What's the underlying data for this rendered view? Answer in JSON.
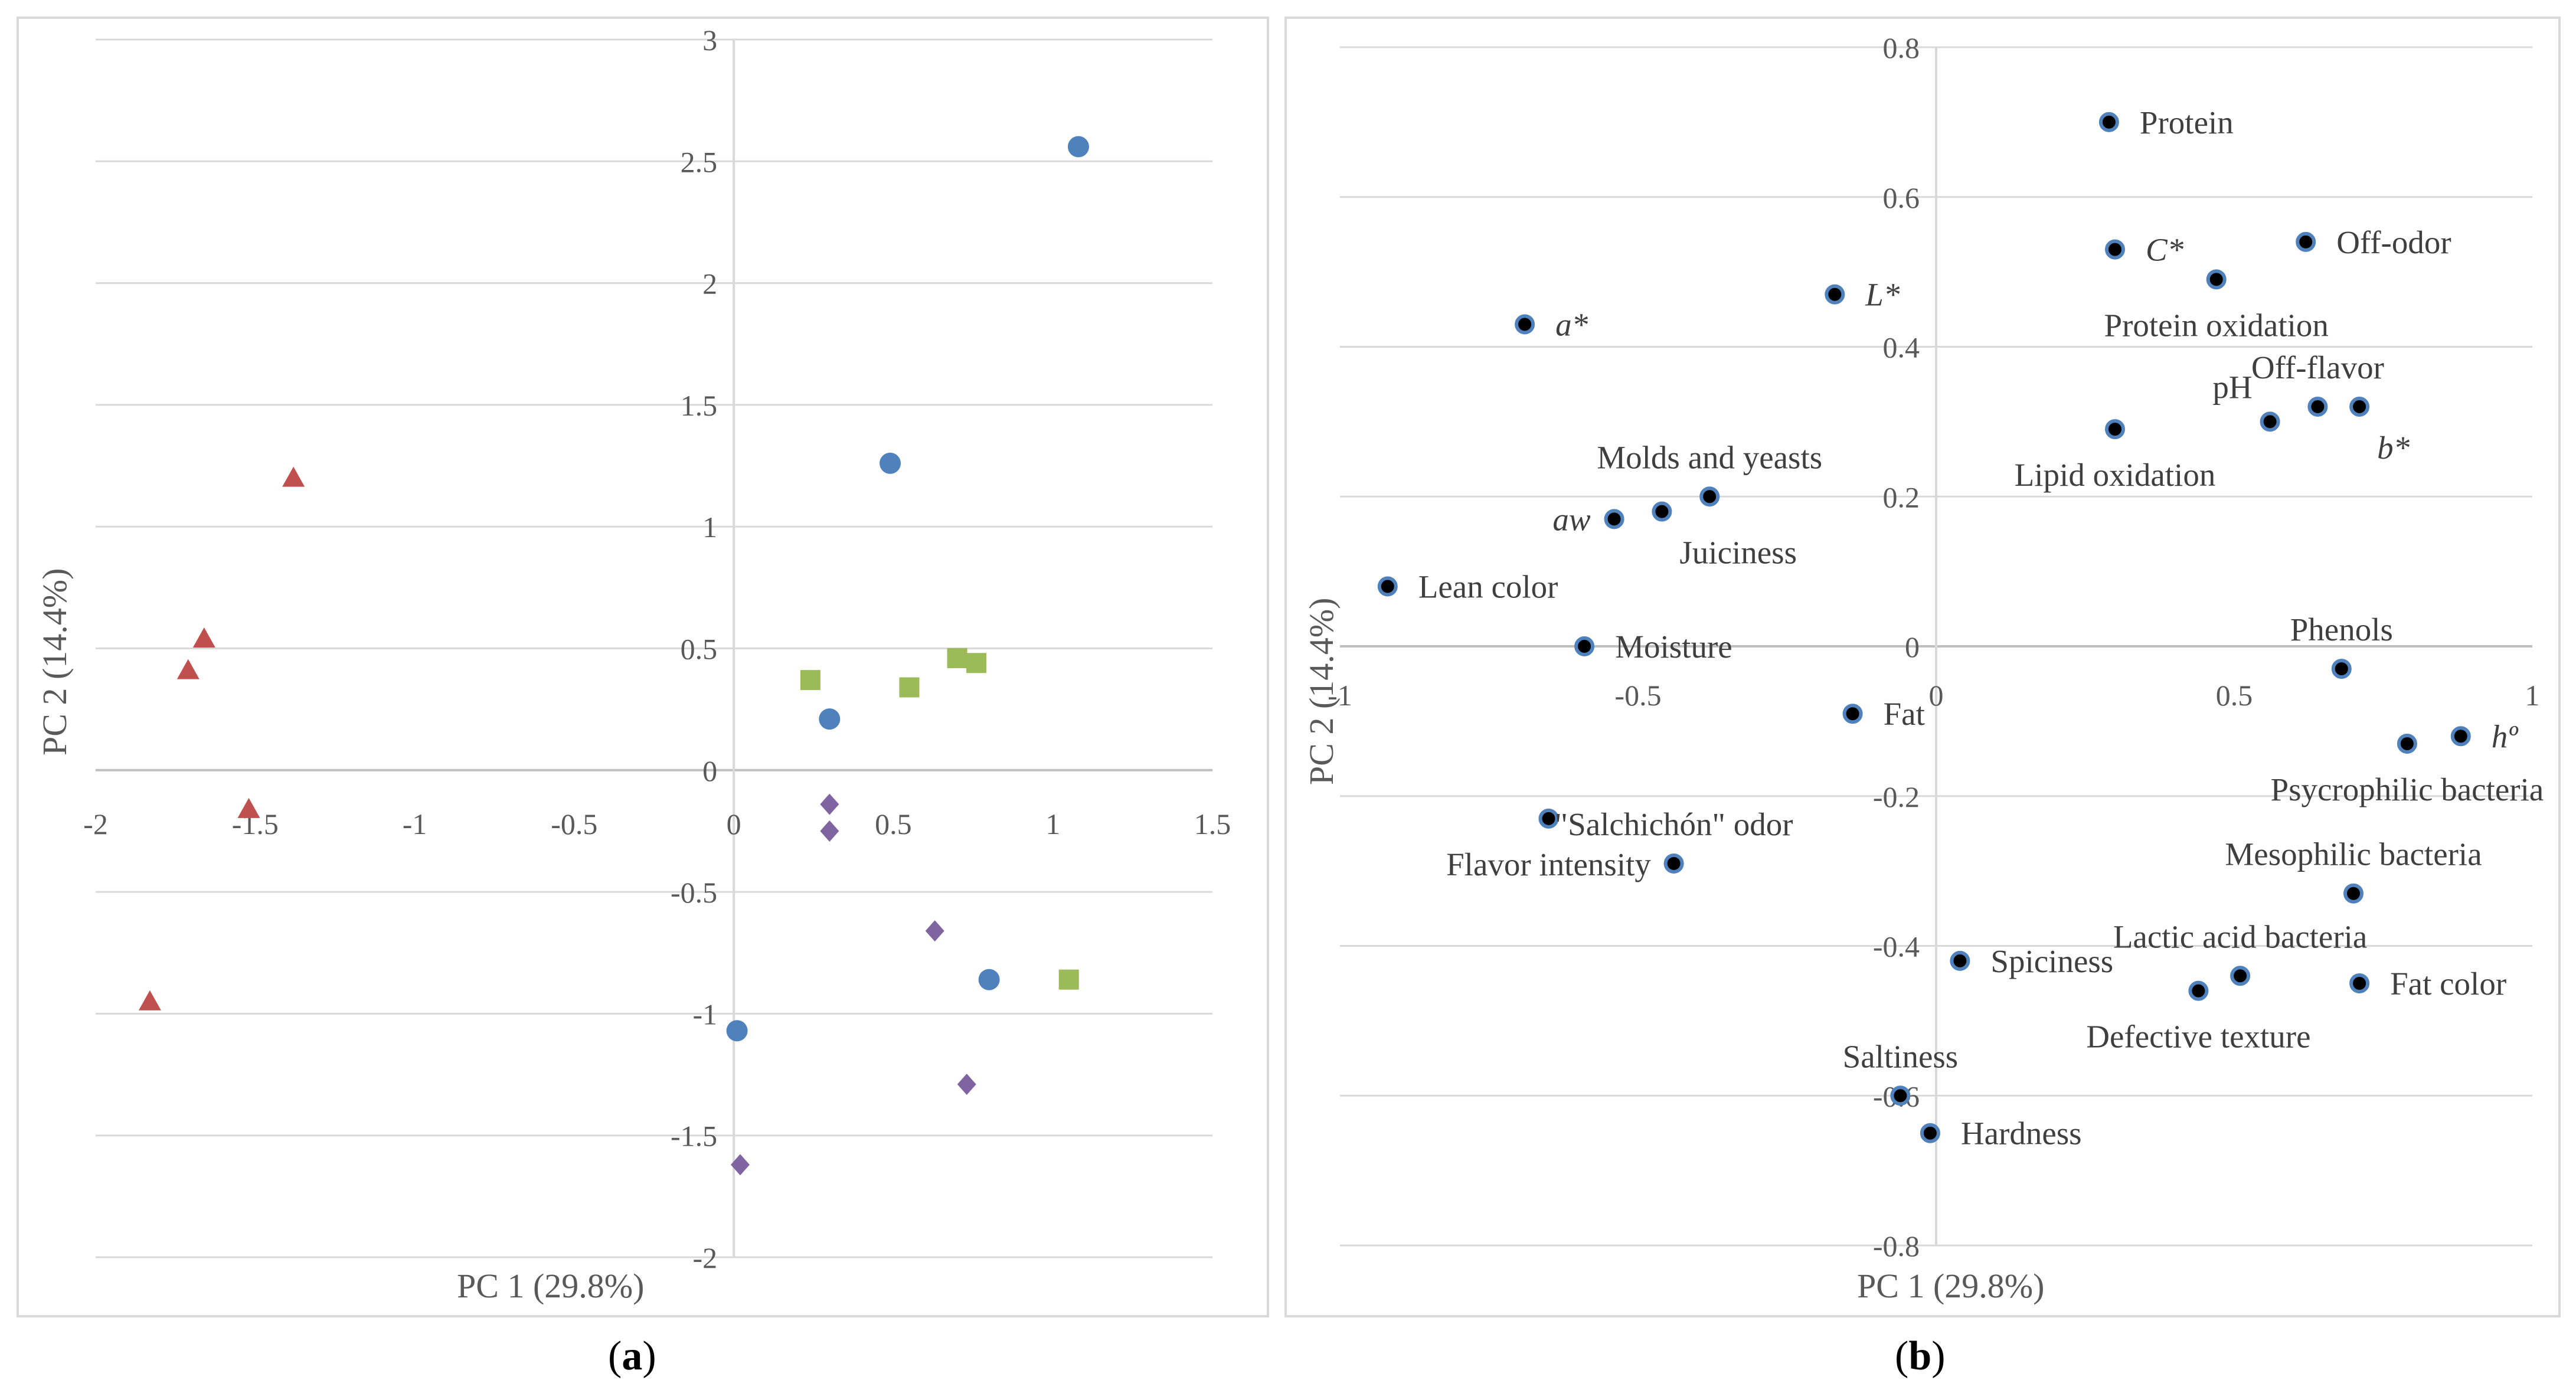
{
  "chart_data": [
    {
      "type": "scatter",
      "panel_label": "a",
      "title": "",
      "xlabel": "PC 1 (29.8%)",
      "ylabel": "PC 2 (14.4%)",
      "xlim": [
        -2,
        1.5
      ],
      "ylim": [
        -2,
        3
      ],
      "xticks": [
        -2,
        -1.5,
        -1,
        -0.5,
        0,
        0.5,
        1,
        1.5
      ],
      "yticks": [
        -2,
        -1.5,
        -1,
        -0.5,
        0,
        0.5,
        1,
        1.5,
        2,
        2.5,
        3
      ],
      "grid": "horizontal",
      "legend": "none",
      "series": [
        {
          "name": "circles",
          "marker": "circle",
          "color": "#4f81bd",
          "points": [
            [
              1.08,
              2.56
            ],
            [
              0.49,
              1.26
            ],
            [
              0.3,
              0.21
            ],
            [
              0.8,
              -0.86
            ],
            [
              0.01,
              -1.07
            ]
          ]
        },
        {
          "name": "squares",
          "marker": "square",
          "color": "#9bbb59",
          "points": [
            [
              0.24,
              0.37
            ],
            [
              0.55,
              0.34
            ],
            [
              0.7,
              0.46
            ],
            [
              0.76,
              0.44
            ],
            [
              1.05,
              -0.86
            ]
          ]
        },
        {
          "name": "diamonds",
          "marker": "diamond",
          "color": "#8064a2",
          "points": [
            [
              0.3,
              -0.14
            ],
            [
              0.3,
              -0.25
            ],
            [
              0.63,
              -0.66
            ],
            [
              0.73,
              -1.29
            ],
            [
              0.02,
              -1.62
            ]
          ]
        },
        {
          "name": "triangles",
          "marker": "triangle",
          "color": "#c0504d",
          "points": [
            [
              -1.38,
              1.2
            ],
            [
              -1.66,
              0.54
            ],
            [
              -1.71,
              0.41
            ],
            [
              -1.52,
              -0.16
            ],
            [
              -1.83,
              -0.95
            ]
          ]
        }
      ]
    },
    {
      "type": "scatter",
      "panel_label": "b",
      "title": "",
      "xlabel": "PC 1 (29.8%)",
      "ylabel": "PC 2 (14.4%)",
      "xlim": [
        -1,
        1
      ],
      "ylim": [
        -0.8,
        0.8
      ],
      "xticks": [
        -1,
        -0.5,
        0,
        0.5,
        1
      ],
      "xtick_labels": [
        "-1",
        "-0.5",
        "0",
        "0.5",
        "1"
      ],
      "yticks": [
        -0.8,
        -0.6,
        -0.4,
        -0.2,
        0,
        0.2,
        0.4,
        0.6,
        0.8
      ],
      "ytick_labels": [
        "-0.8",
        "-0.6",
        "-0.4",
        "-0.2",
        "0",
        "0.2",
        "0.4",
        "0.6",
        "0.8"
      ],
      "grid": "horizontal",
      "legend": "none",
      "marker_color": "#000000",
      "marker_edge": "#4f81bd",
      "points": [
        {
          "label": "Protein",
          "x": 0.29,
          "y": 0.7,
          "anchor": "right"
        },
        {
          "label": "C*",
          "x": 0.3,
          "y": 0.53,
          "anchor": "right",
          "italic": true
        },
        {
          "label": "Off-odor",
          "x": 0.62,
          "y": 0.54,
          "anchor": "right"
        },
        {
          "label": "Protein oxidation",
          "x": 0.47,
          "y": 0.49,
          "anchor": "below"
        },
        {
          "label": "L*",
          "x": -0.17,
          "y": 0.47,
          "anchor": "right",
          "italic": true
        },
        {
          "label": "a*",
          "x": -0.69,
          "y": 0.43,
          "anchor": "right",
          "italic": true
        },
        {
          "label": "Off-flavor",
          "x": 0.64,
          "y": 0.32,
          "anchor": "above"
        },
        {
          "label": "b*",
          "x": 0.71,
          "y": 0.32,
          "anchor": "below-right",
          "italic": true
        },
        {
          "label": "pH",
          "x": 0.56,
          "y": 0.3,
          "anchor": "above-left"
        },
        {
          "label": "Lipid oxidation",
          "x": 0.3,
          "y": 0.29,
          "anchor": "below"
        },
        {
          "label": "Molds and yeasts",
          "x": -0.38,
          "y": 0.2,
          "anchor": "above"
        },
        {
          "label": "aw",
          "x": -0.54,
          "y": 0.17,
          "anchor": "left",
          "italic": true
        },
        {
          "label": "Juiciness",
          "x": -0.46,
          "y": 0.18,
          "anchor": "below-right"
        },
        {
          "label": "Lean color",
          "x": -0.92,
          "y": 0.08,
          "anchor": "right"
        },
        {
          "label": "Moisture",
          "x": -0.59,
          "y": 0.0,
          "anchor": "right"
        },
        {
          "label": "Phenols",
          "x": 0.68,
          "y": -0.03,
          "anchor": "above"
        },
        {
          "label": "Fat",
          "x": -0.14,
          "y": -0.09,
          "anchor": "right"
        },
        {
          "label": "Psycrophilic bacteria",
          "x": 0.79,
          "y": -0.13,
          "anchor": "below"
        },
        {
          "label": "hº",
          "x": 0.88,
          "y": -0.12,
          "anchor": "right",
          "italic": true
        },
        {
          "label": "Flavor intensity",
          "x": -0.65,
          "y": -0.23,
          "anchor": "below"
        },
        {
          "label": "\"Salchichón\" odor",
          "x": -0.44,
          "y": -0.29,
          "anchor": "above"
        },
        {
          "label": "Mesophilic bacteria",
          "x": 0.7,
          "y": -0.33,
          "anchor": "above"
        },
        {
          "label": "Spiciness",
          "x": 0.04,
          "y": -0.42,
          "anchor": "right"
        },
        {
          "label": "Lactic acid bacteria",
          "x": 0.51,
          "y": -0.44,
          "anchor": "above"
        },
        {
          "label": "Fat color",
          "x": 0.71,
          "y": -0.45,
          "anchor": "right"
        },
        {
          "label": "Defective texture",
          "x": 0.44,
          "y": -0.46,
          "anchor": "below"
        },
        {
          "label": "Saltiness",
          "x": -0.06,
          "y": -0.6,
          "anchor": "above"
        },
        {
          "label": "Hardness",
          "x": -0.01,
          "y": -0.65,
          "anchor": "right"
        }
      ]
    }
  ]
}
